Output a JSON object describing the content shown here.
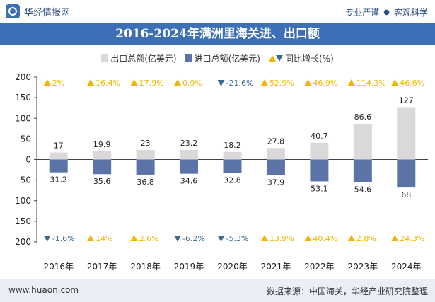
{
  "header": {
    "brand": "华经情报网",
    "motto_left": "专业严谨",
    "motto_right": "客观科学"
  },
  "title": "2016-2024年满洲里海关进、出口额",
  "legend": {
    "export": "出口总额(亿美元)",
    "import": "进口总额(亿美元)",
    "growth": "同比增长(%)"
  },
  "footer": {
    "url": "www.huaon.com",
    "source": "数据来源：中国海关，华经产业研究院整理"
  },
  "colors": {
    "export": "#d9d9d9",
    "import": "#5b73a6",
    "up": "#f2b600",
    "down": "#3b6b8f",
    "title_bar": "#3c6fb5"
  },
  "chart_data": {
    "type": "bar",
    "categories": [
      "2016年",
      "2017年",
      "2018年",
      "2019年",
      "2020年",
      "2021年",
      "2022年",
      "2023年",
      "2024年"
    ],
    "series": [
      {
        "name": "出口总额(亿美元)",
        "values": [
          17,
          19.9,
          23,
          23.2,
          18.2,
          27.8,
          40.7,
          86.6,
          127
        ]
      },
      {
        "name": "进口总额(亿美元)",
        "values": [
          31.2,
          35.6,
          36.8,
          34.6,
          32.8,
          37.9,
          53.1,
          54.6,
          68
        ]
      }
    ],
    "export_growth": [
      2,
      16.4,
      17.9,
      0.9,
      -21.6,
      52.9,
      46.9,
      114.3,
      46.6
    ],
    "export_growth_labels": [
      "2%",
      "16.4%",
      "17.9%",
      "0.9%",
      "-21.6%",
      "52.9%",
      "46.9%",
      "114.3%",
      "46.6%"
    ],
    "import_growth": [
      -1.6,
      14,
      2.6,
      -6.2,
      -5.3,
      13.9,
      40.4,
      2.8,
      24.3
    ],
    "import_growth_labels": [
      "-1.6%",
      "14%",
      "2.6%",
      "-6.2%",
      "-5.3%",
      "13.9%",
      "40.4%",
      "2.8%",
      "24.3%"
    ],
    "yticks": [
      "200",
      "150",
      "100",
      "50",
      "0",
      "50",
      "100",
      "150",
      "200"
    ],
    "ylim": [
      -200,
      200
    ],
    "grid": false
  }
}
